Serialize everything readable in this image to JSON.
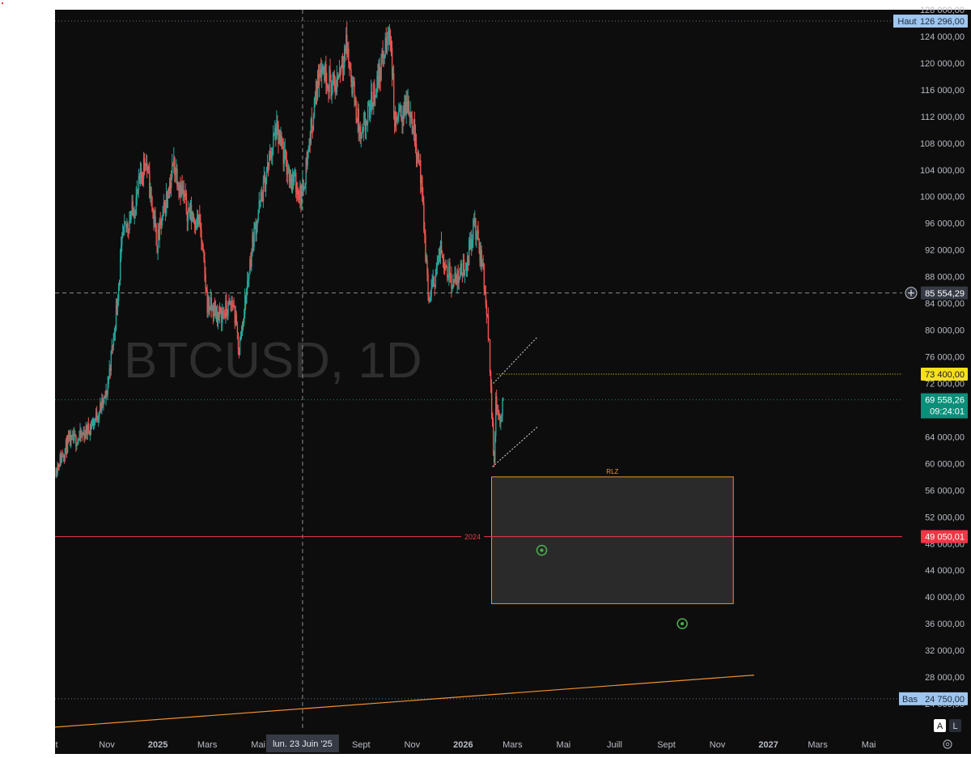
{
  "chart_data": {
    "type": "candlestick",
    "watermark": "BTCUSD, 1D",
    "colors": {
      "background": "#0d0d0d",
      "up": "#26a69a",
      "down": "#ef5350",
      "accent_orange": "#f0912f",
      "support_red": "#f23645",
      "target_yellow": "#f7e01b",
      "current_teal": "#0a8f7a",
      "label_blue": "#9fc6ef",
      "crosshair": "#8c8c8c",
      "target_green": "#4caf50"
    },
    "y_axis": {
      "min": 20000,
      "max": 128000,
      "ticks": [
        {
          "value": 128000,
          "label": "128 000,00"
        },
        {
          "value": 124000,
          "label": "124 000,00"
        },
        {
          "value": 120000,
          "label": "120 000,00"
        },
        {
          "value": 116000,
          "label": "116 000,00"
        },
        {
          "value": 112000,
          "label": "112 000,00"
        },
        {
          "value": 108000,
          "label": "108 000,00"
        },
        {
          "value": 104000,
          "label": "104 000,00"
        },
        {
          "value": 100000,
          "label": "100 000,00"
        },
        {
          "value": 96000,
          "label": "96 000,00"
        },
        {
          "value": 92000,
          "label": "92 000,00"
        },
        {
          "value": 88000,
          "label": "88 000,00"
        },
        {
          "value": 84000,
          "label": "84 000,00"
        },
        {
          "value": 80000,
          "label": "80 000,00"
        },
        {
          "value": 76000,
          "label": "76 000,00"
        },
        {
          "value": 72000,
          "label": "72 000,00"
        },
        {
          "value": 68000,
          "label": "68 000,00"
        },
        {
          "value": 64000,
          "label": "64 000,00"
        },
        {
          "value": 60000,
          "label": "60 000,00"
        },
        {
          "value": 56000,
          "label": "56 000,00"
        },
        {
          "value": 52000,
          "label": "52 000,00"
        },
        {
          "value": 48000,
          "label": "48 000,00"
        },
        {
          "value": 44000,
          "label": "44 000,00"
        },
        {
          "value": 40000,
          "label": "40 000,00"
        },
        {
          "value": 36000,
          "label": "36 000,00"
        },
        {
          "value": 32000,
          "label": "32 000,00"
        },
        {
          "value": 28000,
          "label": "28 000,00"
        },
        {
          "value": 24000,
          "label": "24 000,00"
        }
      ]
    },
    "x_axis": {
      "start": "2024-08-31",
      "end": "2027-06-10",
      "ticks": [
        {
          "date": "2024-08-31",
          "label": "t"
        },
        {
          "date": "2024-11-01",
          "label": "Nov"
        },
        {
          "date": "2025-01-01",
          "label": "2025"
        },
        {
          "date": "2025-03-01",
          "label": "Mars"
        },
        {
          "date": "2025-05-01",
          "label": "Mai"
        },
        {
          "date": "2025-09-01",
          "label": "Sept"
        },
        {
          "date": "2025-11-01",
          "label": "Nov"
        },
        {
          "date": "2026-01-01",
          "label": "2026"
        },
        {
          "date": "2026-03-01",
          "label": "Mars"
        },
        {
          "date": "2026-05-01",
          "label": "Mai"
        },
        {
          "date": "2026-07-01",
          "label": "Juill"
        },
        {
          "date": "2026-09-01",
          "label": "Sept"
        },
        {
          "date": "2026-11-01",
          "label": "Nov"
        },
        {
          "date": "2027-01-01",
          "label": "2027"
        },
        {
          "date": "2027-03-01",
          "label": "Mars"
        },
        {
          "date": "2027-05-01",
          "label": "Mai"
        }
      ]
    },
    "crosshair": {
      "date": "2025-06-23",
      "price": 85554.29,
      "date_label": "lun. 23 Juin '25",
      "price_label": "85 554,29"
    },
    "price_path": [
      {
        "date": "2024-08-31",
        "price": 59000
      },
      {
        "date": "2024-09-15",
        "price": 63000
      },
      {
        "date": "2024-10-01",
        "price": 64000
      },
      {
        "date": "2024-10-15",
        "price": 66000
      },
      {
        "date": "2024-10-31",
        "price": 70000
      },
      {
        "date": "2024-11-10",
        "price": 80000
      },
      {
        "date": "2024-11-20",
        "price": 94000
      },
      {
        "date": "2024-12-05",
        "price": 99000
      },
      {
        "date": "2024-12-17",
        "price": 106000
      },
      {
        "date": "2024-12-31",
        "price": 93000
      },
      {
        "date": "2025-01-20",
        "price": 105000
      },
      {
        "date": "2025-02-05",
        "price": 98000
      },
      {
        "date": "2025-02-20",
        "price": 96000
      },
      {
        "date": "2025-03-01",
        "price": 84000
      },
      {
        "date": "2025-03-15",
        "price": 82000
      },
      {
        "date": "2025-04-01",
        "price": 84000
      },
      {
        "date": "2025-04-08",
        "price": 77000
      },
      {
        "date": "2025-04-25",
        "price": 94000
      },
      {
        "date": "2025-05-10",
        "price": 103000
      },
      {
        "date": "2025-05-22",
        "price": 110000
      },
      {
        "date": "2025-06-05",
        "price": 104000
      },
      {
        "date": "2025-06-22",
        "price": 100000
      },
      {
        "date": "2025-07-14",
        "price": 120000
      },
      {
        "date": "2025-07-31",
        "price": 116000
      },
      {
        "date": "2025-08-14",
        "price": 123000
      },
      {
        "date": "2025-09-01",
        "price": 108000
      },
      {
        "date": "2025-09-15",
        "price": 115000
      },
      {
        "date": "2025-10-06",
        "price": 125000
      },
      {
        "date": "2025-10-11",
        "price": 111000
      },
      {
        "date": "2025-10-28",
        "price": 114000
      },
      {
        "date": "2025-11-10",
        "price": 105000
      },
      {
        "date": "2025-11-21",
        "price": 84000
      },
      {
        "date": "2025-12-05",
        "price": 92000
      },
      {
        "date": "2025-12-20",
        "price": 87000
      },
      {
        "date": "2026-01-05",
        "price": 90000
      },
      {
        "date": "2026-01-14",
        "price": 96000
      },
      {
        "date": "2026-01-25",
        "price": 89000
      },
      {
        "date": "2026-02-01",
        "price": 78000
      },
      {
        "date": "2026-02-05",
        "price": 65000
      },
      {
        "date": "2026-02-07",
        "price": 60000
      },
      {
        "date": "2026-02-09",
        "price": 70000
      },
      {
        "date": "2026-02-13",
        "price": 66000
      },
      {
        "date": "2026-02-18",
        "price": 69558.26
      }
    ],
    "annotations": {
      "high": {
        "label": "Haut",
        "value_label": "126 296,00",
        "price": 126296
      },
      "low": {
        "label": "Bas",
        "value_label": "24 750,00",
        "price": 24750
      },
      "target": {
        "value_label": "73 400,00",
        "price": 73400,
        "start": "2026-02-10"
      },
      "current": {
        "value_label": "69 558,26",
        "countdown": "09:24:01",
        "price": 69558.26
      },
      "support": {
        "value_label": "49 050,01",
        "price": 49050.01,
        "label": "2024"
      },
      "rlz_box": {
        "label": "RLZ",
        "start": "2026-02-04",
        "end": "2026-11-20",
        "top": 58000,
        "bottom": 39000
      },
      "circles": [
        {
          "date": "2026-04-05",
          "price": 47000
        },
        {
          "date": "2026-09-20",
          "price": 36000
        }
      ],
      "channel_upper": {
        "from": {
          "date": "2026-02-06",
          "price": 72000
        },
        "to": {
          "date": "2026-03-31",
          "price": 79000
        }
      },
      "channel_lower": {
        "from": {
          "date": "2026-02-05",
          "price": 59500
        },
        "to": {
          "date": "2026-03-31",
          "price": 65500
        }
      },
      "trendline": {
        "from": {
          "date": "2024-08-31",
          "price": 20500
        },
        "to": {
          "date": "2026-12-15",
          "price": 28300
        }
      }
    },
    "axis_buttons": {
      "auto": "A",
      "log": "L"
    }
  }
}
